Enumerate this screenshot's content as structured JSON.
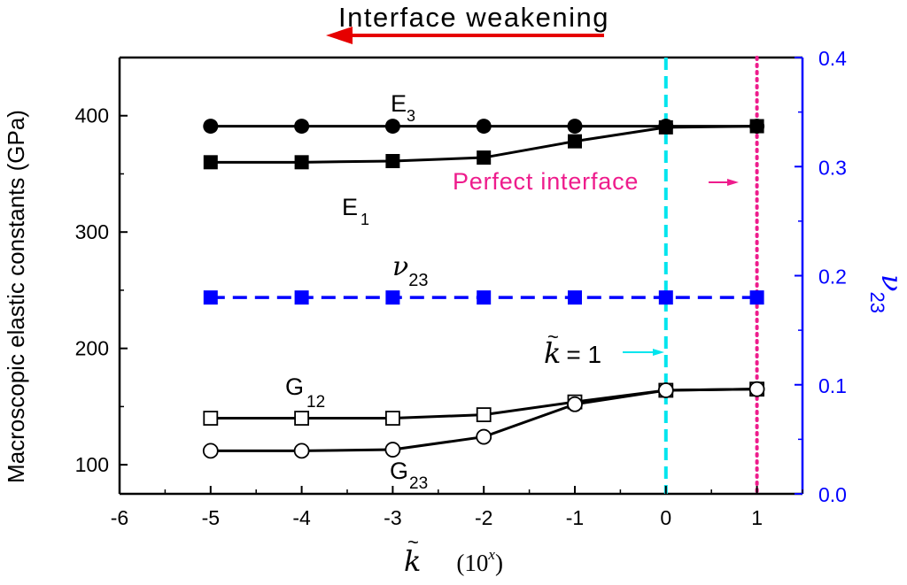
{
  "chart_data": {
    "type": "line",
    "top_annotation": "Interface weakening",
    "x": [
      -5,
      -4,
      -3,
      -2,
      -1,
      0,
      1
    ],
    "xlim": [
      -6,
      1.5
    ],
    "xticks": [
      -6,
      -5,
      -4,
      -3,
      -2,
      -1,
      0,
      1
    ],
    "xtick_labels": [
      "-6",
      "-5",
      "-4",
      "-3",
      "-2",
      "-1",
      "0",
      "1"
    ],
    "xlabel_symbol": "k",
    "xlabel_unit": "(10",
    "xlabel_exp": "x",
    "xlabel_close": ")",
    "ylabel": "Macroscopic elastic constants (GPa)",
    "ylim": [
      75,
      450
    ],
    "yticks": [
      100,
      200,
      300,
      400
    ],
    "ytick_labels": [
      "100",
      "200",
      "300",
      "400"
    ],
    "y2label_main": "ν",
    "y2label_sub": "23",
    "y2lim": [
      0.0,
      0.4
    ],
    "y2ticks": [
      0.0,
      0.1,
      0.2,
      0.3,
      0.4
    ],
    "y2tick_labels": [
      "0.0",
      "0.1",
      "0.2",
      "0.3",
      "0.4"
    ],
    "series": [
      {
        "name": "E3",
        "label_main": "E",
        "label_sub": "3",
        "axis": "left",
        "marker": "filled-circle",
        "color": "#000000",
        "values": [
          391,
          391,
          391,
          391,
          391,
          391,
          391
        ]
      },
      {
        "name": "E1",
        "label_main": "E",
        "label_sub": "1",
        "axis": "left",
        "marker": "filled-square",
        "color": "#000000",
        "values": [
          360,
          360,
          361,
          364,
          378,
          390,
          391
        ]
      },
      {
        "name": "ν23",
        "label_main": "ν",
        "label_sub": "23",
        "axis": "right",
        "marker": "filled-square",
        "color": "#0000ff",
        "dashed": true,
        "values": [
          0.18,
          0.18,
          0.18,
          0.18,
          0.18,
          0.18,
          0.18
        ]
      },
      {
        "name": "G12",
        "label_main": "G",
        "label_sub": "12",
        "axis": "left",
        "marker": "open-square",
        "color": "#000000",
        "values": [
          140,
          140,
          140,
          143,
          154,
          164,
          165
        ]
      },
      {
        "name": "G23",
        "label_main": "G",
        "label_sub": "23",
        "axis": "left",
        "marker": "open-circle",
        "color": "#000000",
        "values": [
          112,
          112,
          113,
          124,
          152,
          164,
          165
        ]
      }
    ],
    "reference_lines": [
      {
        "x": 0,
        "color": "#00e5ee",
        "style": "dashed"
      },
      {
        "x": 1,
        "color": "#ee1c8c",
        "style": "dotted"
      }
    ],
    "annotations": {
      "perfect_interface": "Perfect interface",
      "k_equals_symbol": "k",
      "k_equals_value": "= 1"
    },
    "colors": {
      "arrow_red": "#e60000",
      "cyan": "#00e5ee",
      "magenta": "#ee1c8c",
      "blue": "#0000ff"
    }
  }
}
